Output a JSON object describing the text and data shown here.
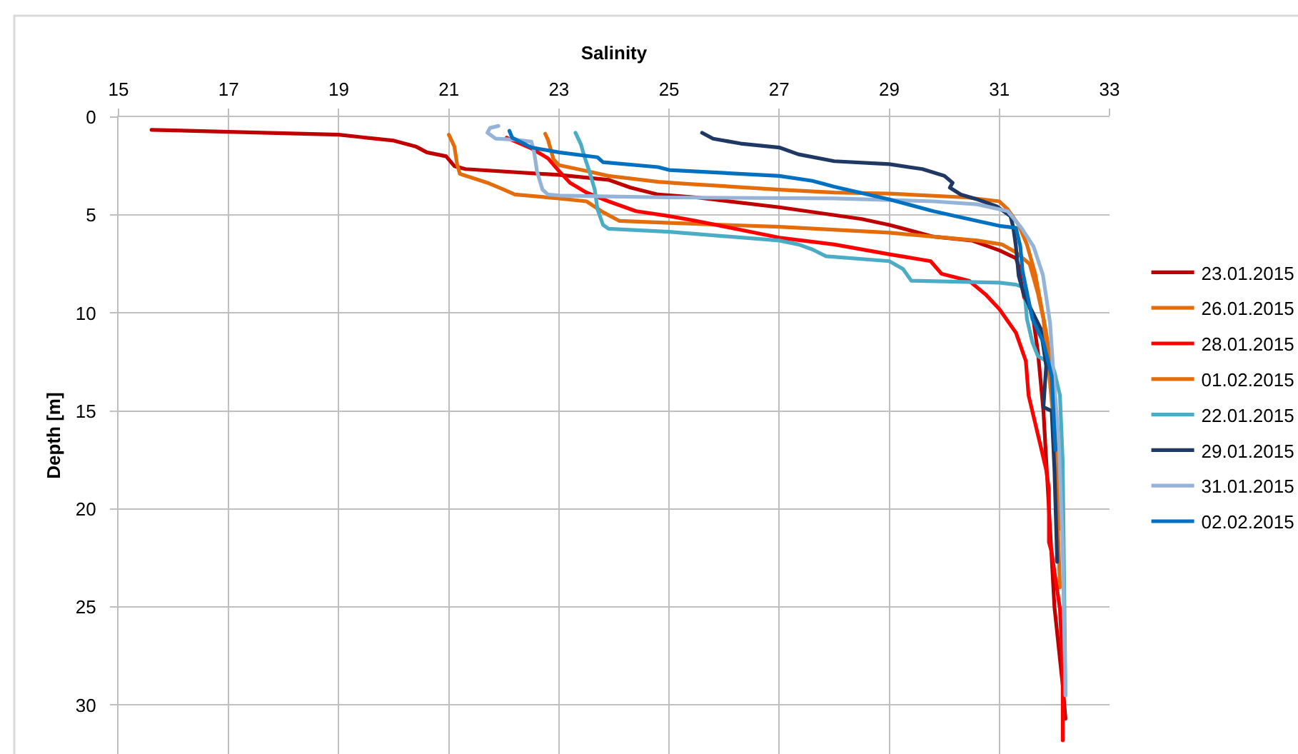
{
  "chart_data": {
    "type": "line",
    "xlabel": "Salinity",
    "ylabel": "Depth [m]",
    "xlim": [
      15,
      33
    ],
    "xticks": [
      15,
      17,
      19,
      21,
      23,
      25,
      27,
      29,
      31,
      33
    ],
    "ylim": [
      32.5,
      0
    ],
    "yticks": [
      0,
      5,
      10,
      15,
      20,
      25,
      30
    ],
    "grid": true,
    "legend": "right",
    "series": [
      {
        "name": "23.01.2015",
        "color": "#c00000",
        "x": [
          15.6,
          17,
          19,
          20,
          20.4,
          20.6,
          20.95,
          21.1,
          21.3,
          23,
          23.9,
          24.3,
          24.8,
          25.5,
          27,
          28.5,
          29,
          29.8,
          30.5,
          31,
          31.3,
          31.35,
          31.4,
          31.45,
          31.6,
          31.7,
          31.8,
          31.9,
          32,
          32.15,
          32.2
        ],
        "values": [
          0.65,
          0.75,
          0.9,
          1.2,
          1.5,
          1.8,
          2,
          2.5,
          2.65,
          2.95,
          3.2,
          3.6,
          3.95,
          4.1,
          4.6,
          5.2,
          5.5,
          6.1,
          6.3,
          6.8,
          7.2,
          7.6,
          8.5,
          9.2,
          10,
          12,
          15,
          20,
          25,
          29,
          30.7
        ]
      },
      {
        "name": "26.01.2015",
        "color": "#e46c0a",
        "x": [
          21,
          21.1,
          21.15,
          21.2,
          21.7,
          22,
          22.2,
          23,
          23.5,
          23.8,
          24.1,
          25,
          27,
          29,
          29.8,
          30.6,
          31.05,
          31.3,
          31.55,
          31.7,
          31.8,
          31.9,
          32,
          32.05,
          32.1
        ],
        "values": [
          0.9,
          1.5,
          2.4,
          2.9,
          3.35,
          3.7,
          3.95,
          4.15,
          4.3,
          4.85,
          5.3,
          5.4,
          5.6,
          5.9,
          6.1,
          6.3,
          6.5,
          6.9,
          7.5,
          9,
          10.3,
          13,
          16,
          20,
          24
        ]
      },
      {
        "name": "28.01.2015",
        "color": "#ff0000",
        "x": [
          22.05,
          22.5,
          22.8,
          23,
          23.2,
          23.5,
          23.9,
          24.4,
          25,
          25.5,
          27,
          28,
          29,
          29.75,
          29.95,
          30.45,
          30.75,
          31,
          31.3,
          31.48,
          31.53,
          31.75,
          31.85,
          31.9,
          31.9,
          31.95,
          32,
          32.1,
          32.15,
          32.15
        ],
        "values": [
          1.05,
          1.6,
          2.1,
          2.75,
          3.35,
          3.85,
          4.3,
          4.8,
          5.05,
          5.3,
          6.15,
          6.5,
          7,
          7.35,
          8,
          8.35,
          9.05,
          9.8,
          11,
          12.45,
          14.2,
          16.8,
          18,
          19,
          21.7,
          22.2,
          23.2,
          25.1,
          28,
          31.8
        ]
      },
      {
        "name": "01.02.2015",
        "color": "#e46c0a",
        "x": [
          22.75,
          22.8,
          22.9,
          23,
          23.5,
          23.9,
          24.8,
          25.3,
          27,
          28,
          29,
          30.4,
          31,
          31.15,
          31.35,
          31.5,
          31.65,
          31.75,
          31.85,
          31.95,
          32,
          32.05,
          32.1
        ],
        "values": [
          0.85,
          1.15,
          2.15,
          2.45,
          2.75,
          3,
          3.3,
          3.4,
          3.7,
          3.85,
          3.9,
          4.1,
          4.3,
          4.7,
          5.5,
          6.5,
          8,
          9.5,
          11,
          13,
          15,
          18,
          21
        ]
      },
      {
        "name": "22.01.2015",
        "color": "#4bacc6",
        "x": [
          23.3,
          23.4,
          23.45,
          23.55,
          23.65,
          23.7,
          23.8,
          23.9,
          25,
          27,
          27.35,
          27.6,
          27.85,
          29,
          29.25,
          29.4,
          31,
          31.3,
          31.45,
          31.5,
          31.6,
          31.7,
          31.95,
          32,
          32.1,
          32.15,
          32.2
        ],
        "values": [
          0.8,
          1.4,
          1.9,
          2.75,
          3.7,
          4.7,
          5.5,
          5.7,
          5.85,
          6.3,
          6.5,
          6.75,
          7.1,
          7.35,
          7.75,
          8.35,
          8.45,
          8.55,
          8.7,
          10.3,
          11.5,
          12.2,
          12.6,
          13,
          14.2,
          17.6,
          29.5
        ]
      },
      {
        "name": "29.01.2015",
        "color": "#1f3864",
        "x": [
          25.6,
          25.8,
          26.3,
          27,
          27.35,
          28,
          29,
          29.6,
          30,
          30.15,
          30.1,
          30.3,
          30.6,
          30.95,
          31.2,
          31.25,
          31.3,
          31.35,
          31.45,
          31.75,
          31.85,
          31.8,
          31.95,
          32,
          32.05
        ],
        "values": [
          0.8,
          1.1,
          1.35,
          1.55,
          1.9,
          2.25,
          2.4,
          2.65,
          3,
          3.35,
          3.6,
          3.95,
          4.2,
          4.55,
          5.05,
          5.6,
          6.6,
          8.1,
          9.1,
          10.8,
          12.7,
          14.8,
          15,
          18,
          22.7
        ]
      },
      {
        "name": "31.01.2015",
        "color": "#95b3d7",
        "x": [
          21.9,
          21.75,
          21.7,
          21.85,
          22.2,
          22.5,
          22.55,
          22.6,
          22.7,
          22.8,
          23,
          23.9,
          25,
          28,
          29.8,
          30.6,
          31.15,
          31.4,
          31.62,
          31.79,
          31.92,
          31.99,
          32.08,
          32.15,
          32.2
        ],
        "values": [
          0.45,
          0.55,
          0.8,
          1.1,
          1.15,
          1.25,
          1.8,
          2.75,
          3.7,
          3.95,
          4,
          4.05,
          4.1,
          4.15,
          4.3,
          4.45,
          4.8,
          5.65,
          6.6,
          8.05,
          10.5,
          13.4,
          16.6,
          22,
          29.5
        ]
      },
      {
        "name": "02.02.2015",
        "color": "#0070c0",
        "x": [
          22.1,
          22.15,
          22.5,
          23,
          23.7,
          23.8,
          24.8,
          25,
          27,
          27.6,
          28,
          29,
          29.8,
          30.6,
          31,
          31.3,
          31.38,
          31.42,
          31.6,
          31.8,
          31.95,
          32,
          32.02
        ],
        "values": [
          0.7,
          1.05,
          1.55,
          1.8,
          2.05,
          2.3,
          2.55,
          2.7,
          3,
          3.25,
          3.55,
          4.2,
          4.8,
          5.3,
          5.55,
          5.65,
          6.6,
          7.85,
          10.3,
          11.5,
          13.2,
          16,
          17
        ]
      }
    ]
  }
}
